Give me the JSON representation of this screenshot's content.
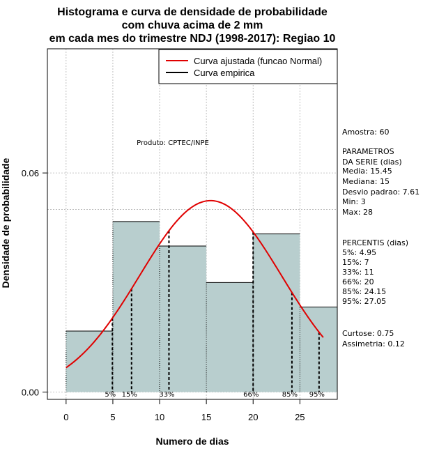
{
  "chart_data": {
    "type": "bar",
    "title_lines": [
      "Histograma e curva de densidade de probabilidade",
      "com chuva acima de 2 mm",
      "em cada mes do trimestre NDJ (1998-2017): Regiao 10"
    ],
    "xlabel": "Numero de dias",
    "ylabel": "Densidade de probabilidade",
    "xlim": [
      -2,
      29
    ],
    "ylim": [
      -0.002,
      0.094
    ],
    "xticks": [
      0,
      5,
      10,
      15,
      20,
      25
    ],
    "yticks": [
      0.0,
      0.06
    ],
    "ytick_labels": [
      "0.00",
      "0.06"
    ],
    "grid": true,
    "hline": 0.05,
    "bins": [
      {
        "start": 0,
        "end": 5,
        "density": 0.0167
      },
      {
        "start": 5,
        "end": 10,
        "density": 0.0467
      },
      {
        "start": 10,
        "end": 15,
        "density": 0.04
      },
      {
        "start": 15,
        "end": 20,
        "density": 0.03
      },
      {
        "start": 20,
        "end": 25,
        "density": 0.0433
      },
      {
        "start": 25,
        "end": 29,
        "density": 0.0233
      }
    ],
    "normal_curve": {
      "mean": 15.45,
      "sd": 7.61,
      "x_range": [
        0,
        27.5
      ],
      "color": "#e00000"
    },
    "percentile_lines": [
      {
        "label": "5%",
        "x": 4.95
      },
      {
        "label": "15%",
        "x": 7
      },
      {
        "label": "33%",
        "x": 11
      },
      {
        "label": "66%",
        "x": 20
      },
      {
        "label": "85%",
        "x": 24.15
      },
      {
        "label": "95%",
        "x": 27.05
      }
    ],
    "legend": {
      "position": "top-right",
      "entries": [
        {
          "label": "Curva ajustada (funcao Normal)",
          "color": "#e00000"
        },
        {
          "label": "Curva empirica",
          "color": "#000000"
        }
      ]
    },
    "annotation": "Produto: CPTEC/INPE",
    "bar_color": "#b8cece"
  },
  "stats": {
    "sample": "Amostra: 60",
    "params_lines": [
      " PARAMETROS",
      "DA SERIE (dias)"
    ],
    "media": "  Media: 15.45",
    "mediana": "  Mediana: 15",
    "desvio": "  Desvio padrao: 7.61",
    "min": "  Min: 3",
    "max": "  Max: 28",
    "percentis_title": "PERCENTIS (dias)",
    "p5": "  5%: 4.95",
    "p15": "  15%: 7",
    "p33": "  33%: 11",
    "p66": "  66%: 20",
    "p85": "  85%: 24.15",
    "p95": "  95%: 27.05",
    "curtose": "   Curtose: 0.75",
    "assimetria": "Assimetria: 0.12"
  }
}
